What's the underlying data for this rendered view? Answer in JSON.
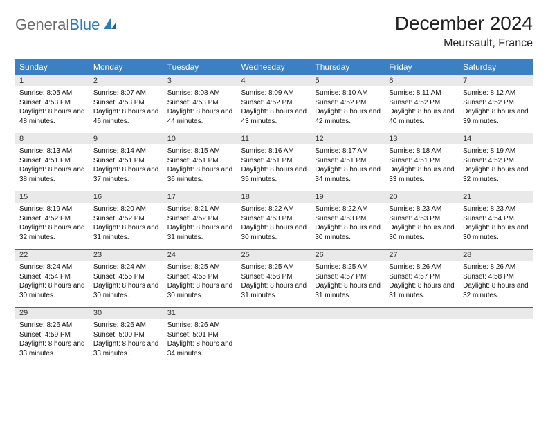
{
  "brand": {
    "part1": "General",
    "part2": "Blue"
  },
  "title": "December 2024",
  "location": "Meursault, France",
  "colors": {
    "header_bg": "#3a80c3",
    "header_text": "#ffffff",
    "daynum_bg": "#e9e9e9",
    "row_border": "#2b6aa8",
    "brand_gray": "#6a6a6a",
    "brand_blue": "#2b79bf"
  },
  "weekdays": [
    "Sunday",
    "Monday",
    "Tuesday",
    "Wednesday",
    "Thursday",
    "Friday",
    "Saturday"
  ],
  "weeks": [
    [
      {
        "n": "1",
        "sr": "8:05 AM",
        "ss": "4:53 PM",
        "dl": "8 hours and 48 minutes."
      },
      {
        "n": "2",
        "sr": "8:07 AM",
        "ss": "4:53 PM",
        "dl": "8 hours and 46 minutes."
      },
      {
        "n": "3",
        "sr": "8:08 AM",
        "ss": "4:53 PM",
        "dl": "8 hours and 44 minutes."
      },
      {
        "n": "4",
        "sr": "8:09 AM",
        "ss": "4:52 PM",
        "dl": "8 hours and 43 minutes."
      },
      {
        "n": "5",
        "sr": "8:10 AM",
        "ss": "4:52 PM",
        "dl": "8 hours and 42 minutes."
      },
      {
        "n": "6",
        "sr": "8:11 AM",
        "ss": "4:52 PM",
        "dl": "8 hours and 40 minutes."
      },
      {
        "n": "7",
        "sr": "8:12 AM",
        "ss": "4:52 PM",
        "dl": "8 hours and 39 minutes."
      }
    ],
    [
      {
        "n": "8",
        "sr": "8:13 AM",
        "ss": "4:51 PM",
        "dl": "8 hours and 38 minutes."
      },
      {
        "n": "9",
        "sr": "8:14 AM",
        "ss": "4:51 PM",
        "dl": "8 hours and 37 minutes."
      },
      {
        "n": "10",
        "sr": "8:15 AM",
        "ss": "4:51 PM",
        "dl": "8 hours and 36 minutes."
      },
      {
        "n": "11",
        "sr": "8:16 AM",
        "ss": "4:51 PM",
        "dl": "8 hours and 35 minutes."
      },
      {
        "n": "12",
        "sr": "8:17 AM",
        "ss": "4:51 PM",
        "dl": "8 hours and 34 minutes."
      },
      {
        "n": "13",
        "sr": "8:18 AM",
        "ss": "4:51 PM",
        "dl": "8 hours and 33 minutes."
      },
      {
        "n": "14",
        "sr": "8:19 AM",
        "ss": "4:52 PM",
        "dl": "8 hours and 32 minutes."
      }
    ],
    [
      {
        "n": "15",
        "sr": "8:19 AM",
        "ss": "4:52 PM",
        "dl": "8 hours and 32 minutes."
      },
      {
        "n": "16",
        "sr": "8:20 AM",
        "ss": "4:52 PM",
        "dl": "8 hours and 31 minutes."
      },
      {
        "n": "17",
        "sr": "8:21 AM",
        "ss": "4:52 PM",
        "dl": "8 hours and 31 minutes."
      },
      {
        "n": "18",
        "sr": "8:22 AM",
        "ss": "4:53 PM",
        "dl": "8 hours and 30 minutes."
      },
      {
        "n": "19",
        "sr": "8:22 AM",
        "ss": "4:53 PM",
        "dl": "8 hours and 30 minutes."
      },
      {
        "n": "20",
        "sr": "8:23 AM",
        "ss": "4:53 PM",
        "dl": "8 hours and 30 minutes."
      },
      {
        "n": "21",
        "sr": "8:23 AM",
        "ss": "4:54 PM",
        "dl": "8 hours and 30 minutes."
      }
    ],
    [
      {
        "n": "22",
        "sr": "8:24 AM",
        "ss": "4:54 PM",
        "dl": "8 hours and 30 minutes."
      },
      {
        "n": "23",
        "sr": "8:24 AM",
        "ss": "4:55 PM",
        "dl": "8 hours and 30 minutes."
      },
      {
        "n": "24",
        "sr": "8:25 AM",
        "ss": "4:55 PM",
        "dl": "8 hours and 30 minutes."
      },
      {
        "n": "25",
        "sr": "8:25 AM",
        "ss": "4:56 PM",
        "dl": "8 hours and 31 minutes."
      },
      {
        "n": "26",
        "sr": "8:25 AM",
        "ss": "4:57 PM",
        "dl": "8 hours and 31 minutes."
      },
      {
        "n": "27",
        "sr": "8:26 AM",
        "ss": "4:57 PM",
        "dl": "8 hours and 31 minutes."
      },
      {
        "n": "28",
        "sr": "8:26 AM",
        "ss": "4:58 PM",
        "dl": "8 hours and 32 minutes."
      }
    ],
    [
      {
        "n": "29",
        "sr": "8:26 AM",
        "ss": "4:59 PM",
        "dl": "8 hours and 33 minutes."
      },
      {
        "n": "30",
        "sr": "8:26 AM",
        "ss": "5:00 PM",
        "dl": "8 hours and 33 minutes."
      },
      {
        "n": "31",
        "sr": "8:26 AM",
        "ss": "5:01 PM",
        "dl": "8 hours and 34 minutes."
      },
      null,
      null,
      null,
      null
    ]
  ],
  "labels": {
    "sunrise": "Sunrise:",
    "sunset": "Sunset:",
    "daylight": "Daylight:"
  }
}
